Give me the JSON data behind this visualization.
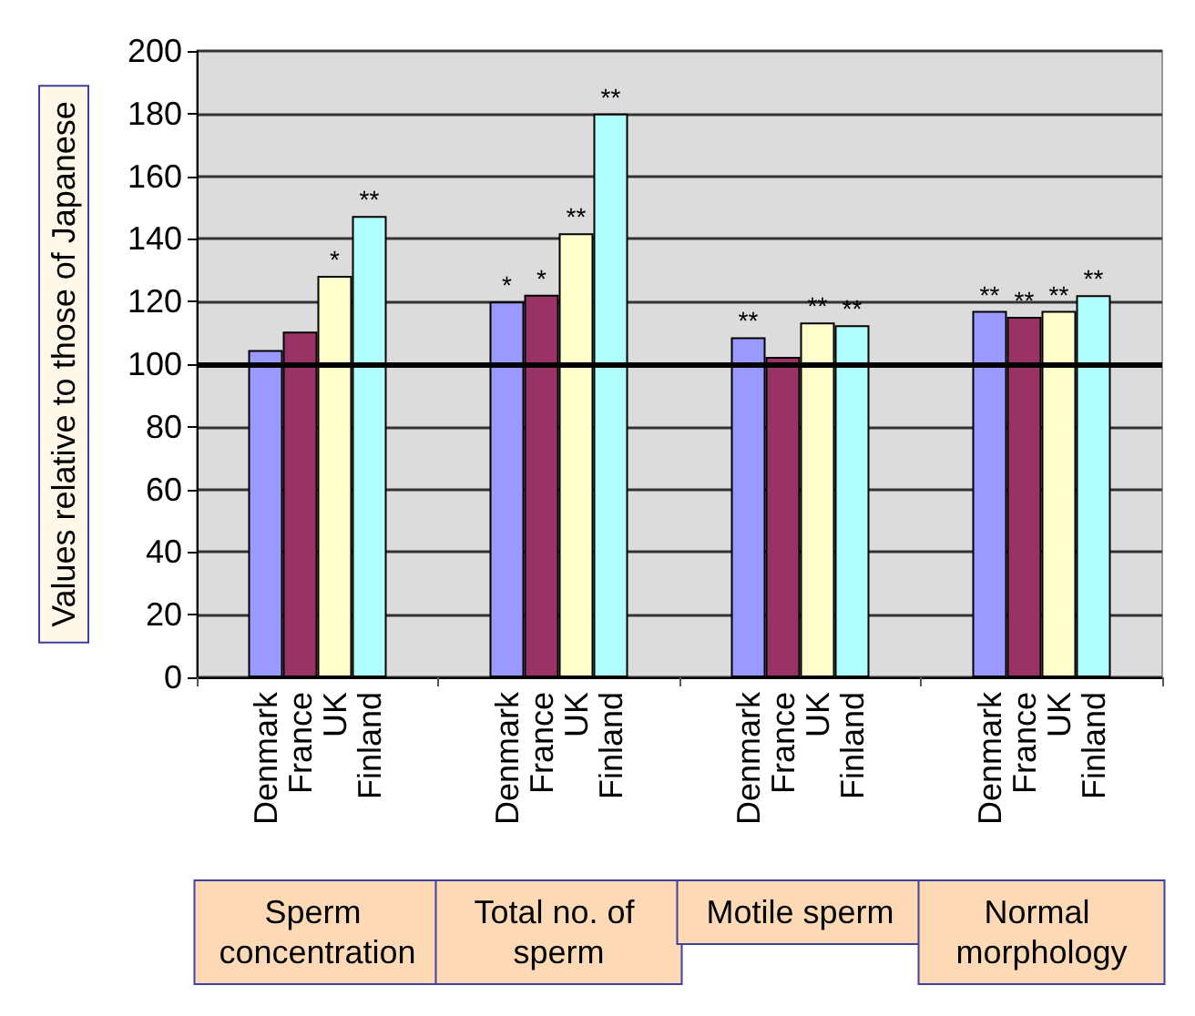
{
  "chart_data": {
    "type": "bar",
    "ylabel": "Values relative to those of Japanese",
    "categories": [
      "Sperm concentration",
      "Total no. of sperm",
      "Motile sperm",
      "Normal morphology"
    ],
    "series": [
      {
        "name": "Denmark",
        "color": "#9999ff",
        "values": [
          104.5,
          120,
          108.6,
          117
        ],
        "value_labels": [
          null,
          "*",
          "**",
          "**"
        ]
      },
      {
        "name": "France",
        "color": "#993366",
        "values": [
          110.4,
          122.2,
          102.3,
          115.1
        ],
        "value_labels": [
          null,
          "*",
          null,
          "**"
        ]
      },
      {
        "name": "UK",
        "color": "#ffffcc",
        "values": [
          128.2,
          141.8,
          113.3,
          117
        ],
        "value_labels": [
          "*",
          "**",
          "**",
          "**"
        ]
      },
      {
        "name": "Finland",
        "color": "#b0ffff",
        "values": [
          147.3,
          180,
          112.4,
          122
        ],
        "value_labels": [
          "**",
          "**",
          "**",
          "**"
        ]
      }
    ],
    "ylim": [
      0,
      200
    ],
    "yticks": [
      0,
      20,
      40,
      60,
      80,
      100,
      120,
      140,
      160,
      180,
      200
    ],
    "grid": "y",
    "ref_lines": [
      {
        "axis": "y",
        "value": 100,
        "color": "#000000"
      }
    ]
  }
}
